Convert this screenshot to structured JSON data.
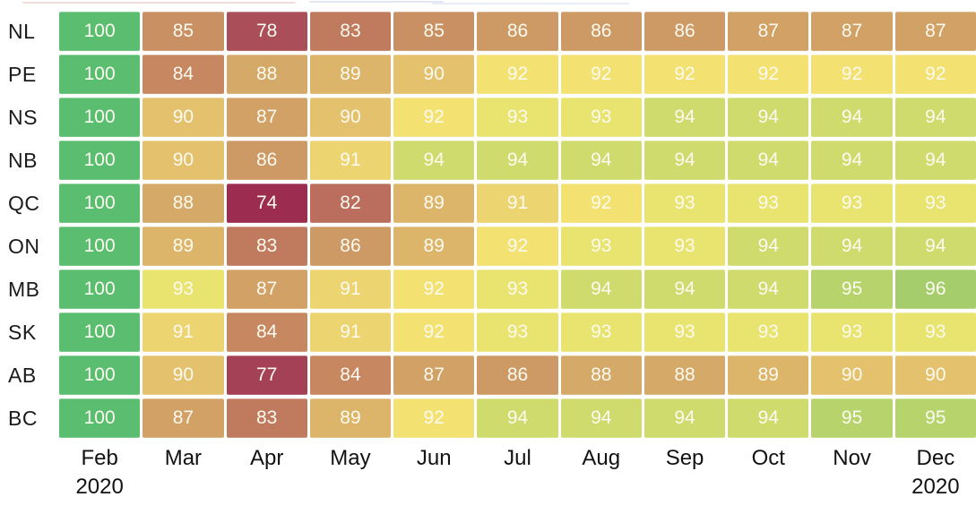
{
  "chart_data": {
    "type": "heatmap",
    "title": "",
    "xlabel": "",
    "ylabel": "",
    "rows": [
      "NL",
      "PE",
      "NS",
      "NB",
      "QC",
      "ON",
      "MB",
      "SK",
      "AB",
      "BC"
    ],
    "columns": [
      "Feb",
      "Mar",
      "Apr",
      "May",
      "Jun",
      "Jul",
      "Aug",
      "Sep",
      "Oct",
      "Nov",
      "Dec"
    ],
    "year_sublabel_first": "2020",
    "year_sublabel_last": "2020",
    "values": [
      [
        100,
        85,
        78,
        83,
        85,
        86,
        86,
        86,
        87,
        87,
        87
      ],
      [
        100,
        84,
        88,
        89,
        90,
        92,
        92,
        92,
        92,
        92,
        92
      ],
      [
        100,
        90,
        87,
        90,
        92,
        93,
        93,
        94,
        94,
        94,
        94
      ],
      [
        100,
        90,
        86,
        91,
        94,
        94,
        94,
        94,
        94,
        94,
        94
      ],
      [
        100,
        88,
        74,
        82,
        89,
        91,
        92,
        93,
        93,
        93,
        93
      ],
      [
        100,
        89,
        83,
        86,
        89,
        92,
        93,
        93,
        94,
        94,
        94
      ],
      [
        100,
        93,
        87,
        91,
        92,
        93,
        94,
        94,
        94,
        95,
        96
      ],
      [
        100,
        91,
        84,
        91,
        92,
        93,
        93,
        93,
        93,
        93,
        93
      ],
      [
        100,
        90,
        77,
        84,
        87,
        86,
        88,
        88,
        89,
        90,
        90
      ],
      [
        100,
        87,
        83,
        89,
        92,
        94,
        94,
        94,
        94,
        95,
        95
      ]
    ],
    "colormap": {
      "74": "#9c2c50",
      "77": "#a54156",
      "78": "#aa4f59",
      "82": "#bb6e5d",
      "83": "#c07b5f",
      "84": "#c68761",
      "85": "#c99063",
      "86": "#cd9965",
      "87": "#d1a166",
      "88": "#d5a968",
      "89": "#dcb56a",
      "90": "#e3c16d",
      "91": "#ecd470",
      "92": "#f3e172",
      "93": "#e9e370",
      "94": "#cfdc6d",
      "95": "#b7d46c",
      "96": "#a6cd6b",
      "100": "#5bbd6f"
    },
    "cell_text_color": "#fbfaf0",
    "axis_text_color": "#121212",
    "legend": "none",
    "grid_lines": "white-gaps"
  }
}
